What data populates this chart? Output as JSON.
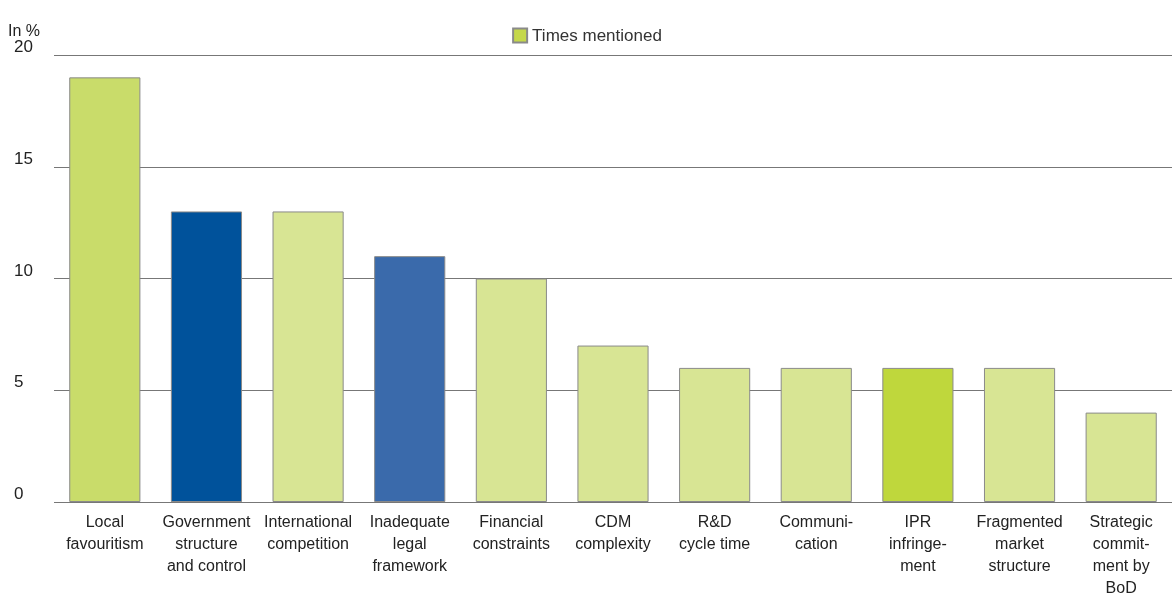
{
  "chart_data": {
    "type": "bar",
    "ylabel": "In %",
    "categories": [
      "Local\nfavouritism",
      "Government\nstructure\nand control",
      "International\ncompetition",
      "Inadequate\nlegal\nframework",
      "Financial\nconstraints",
      "CDM\ncomplexity",
      "R&D\ncycle time",
      "Communi-\ncation",
      "IPR\ninfringe-\nment",
      "Fragmented\nmarket\nstructure",
      "Strategic\ncommit-\nment by\nBoD"
    ],
    "series": [
      {
        "name": "Times mentioned",
        "color": "#c5d84a",
        "values": [
          19,
          13,
          13,
          11,
          10,
          7,
          6,
          6,
          6,
          6,
          4
        ],
        "colors": [
          "#c9dc6a",
          "#00529b",
          "#d8e594",
          "#3a6aab",
          "#d8e594",
          "#d8e594",
          "#d8e594",
          "#d8e594",
          "#bfd73c",
          "#d8e594",
          "#d8e594"
        ]
      }
    ],
    "ylim": [
      0,
      20
    ],
    "yticks": [
      0,
      5,
      10,
      15,
      20
    ],
    "grid": "y",
    "legend": "top"
  }
}
